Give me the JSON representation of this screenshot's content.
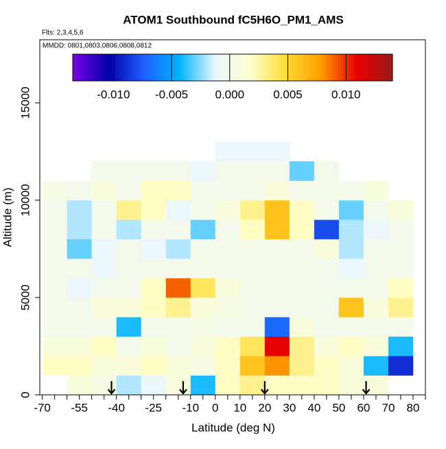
{
  "chart_data": {
    "type": "heatmap",
    "title": "ATOM1 Southbound fC5H6O_PM1_AMS",
    "subtitle": "Flts: 2,3,4,5,6",
    "annotation": "MMDD: 0801,0803,0806,0808,0812",
    "x_label": "Latitude (deg N)",
    "y_label": "Altitude (m)",
    "xlim": [
      -71,
      85
    ],
    "ylim": [
      0,
      18240
    ],
    "xticks": [
      -70,
      -55,
      -40,
      -25,
      -10,
      0,
      10,
      20,
      30,
      40,
      50,
      60,
      70,
      80
    ],
    "xminor_ticks": [
      -65,
      -60,
      -50,
      -45,
      -35,
      -30,
      -20,
      -15,
      -5,
      5,
      15,
      25,
      35,
      45,
      55,
      65,
      75,
      85
    ],
    "yticks": [
      0,
      5000,
      10000,
      15000
    ],
    "x_edges": [
      -70,
      -60,
      -50,
      -40,
      -30,
      -20,
      -10,
      0,
      10,
      20,
      30,
      40,
      50,
      60,
      70,
      80
    ],
    "y_edges": [
      0,
      1000,
      2000,
      3000,
      4000,
      5000,
      6000,
      7000,
      8000,
      9000,
      10000,
      11000,
      12000,
      13000
    ],
    "z": [
      [
        null,
        0.001,
        0.0005,
        -0.002,
        -0.001,
        0.001,
        -0.004,
        0.002,
        0.003,
        0.002,
        0.002,
        0.002,
        0.001,
        0.001,
        null
      ],
      [
        0.002,
        0.002,
        0.001,
        0.001,
        0.002,
        0.001,
        0.0005,
        0.002,
        0.006,
        0.008,
        0.003,
        0.002,
        0.001,
        -0.004,
        -0.009
      ],
      [
        0.001,
        0.001,
        0.002,
        0.0,
        0.001,
        0.0,
        0.001,
        0.002,
        0.004,
        0.011,
        0.003,
        0.001,
        0.002,
        0.001,
        -0.004
      ],
      [
        0.0,
        0.0,
        0.0,
        -0.004,
        0.0,
        0.0,
        0.0005,
        0.0,
        0.0,
        -0.007,
        0.001,
        0.0,
        0.0,
        0.0,
        0.0
      ],
      [
        0.0,
        0.0,
        0.001,
        0.001,
        0.002,
        0.003,
        0.001,
        0.0005,
        0.0,
        0.0,
        0.0,
        0.0,
        0.006,
        0.001,
        0.003
      ],
      [
        0.0,
        -0.001,
        0.0,
        0.0,
        0.002,
        0.009,
        0.004,
        0.001,
        0.0,
        0.0,
        0.0,
        0.0,
        0.0,
        0.0,
        0.002
      ],
      [
        0.0,
        0.0,
        -0.001,
        0.0,
        0.0,
        0.0,
        0.0,
        0.0,
        0.0,
        0.0,
        0.0,
        0.0,
        -0.001,
        0.0,
        0.0
      ],
      [
        0.0,
        -0.003,
        -0.001,
        0.0,
        -0.001,
        -0.002,
        0.0,
        0.0,
        0.0,
        0.0,
        0.0,
        0.001,
        -0.002,
        0.0,
        0.0
      ],
      [
        0.0,
        -0.002,
        0.0,
        -0.002,
        0.0,
        0.0,
        -0.003,
        0.0,
        0.002,
        0.006,
        0.002,
        -0.008,
        -0.002,
        -0.001,
        0.0
      ],
      [
        0.0,
        -0.002,
        0.0,
        0.003,
        0.002,
        -0.001,
        0.0,
        0.001,
        0.003,
        0.006,
        0.002,
        0.0,
        -0.003,
        0.0,
        0.001
      ],
      [
        0.0005,
        0.0,
        0.001,
        0.0,
        0.002,
        0.002,
        0.0,
        0.0,
        0.0,
        0.001,
        0.0,
        0.0,
        0.0,
        0.001,
        null
      ],
      [
        null,
        null,
        0.0,
        0.0,
        0.0,
        0.0,
        -0.001,
        0.0,
        0.0,
        0.0,
        -0.003,
        0.0,
        null,
        null,
        null
      ],
      [
        null,
        null,
        null,
        null,
        null,
        null,
        null,
        -0.001,
        -0.001,
        -0.001,
        null,
        null,
        null,
        null,
        null
      ]
    ],
    "markers_x": [
      -42,
      -13,
      20,
      61
    ],
    "colorlim": [
      -0.0135,
      0.014
    ],
    "colorbar_ticks": [
      {
        "value": -0.01,
        "label": "-0.010"
      },
      {
        "value": -0.005,
        "label": "-0.005"
      },
      {
        "value": 0,
        "label": "0.000"
      },
      {
        "value": 0.005,
        "label": "0.005"
      },
      {
        "value": 0.01,
        "label": "0.010"
      }
    ],
    "colors": [
      "#7b00e6",
      "#0000a8",
      "#1f5fff",
      "#00b4ff",
      "#eaf6ff",
      "#ffffd0",
      "#ffdc30",
      "#ff9a00",
      "#e60000",
      "#9a1a1a"
    ]
  }
}
